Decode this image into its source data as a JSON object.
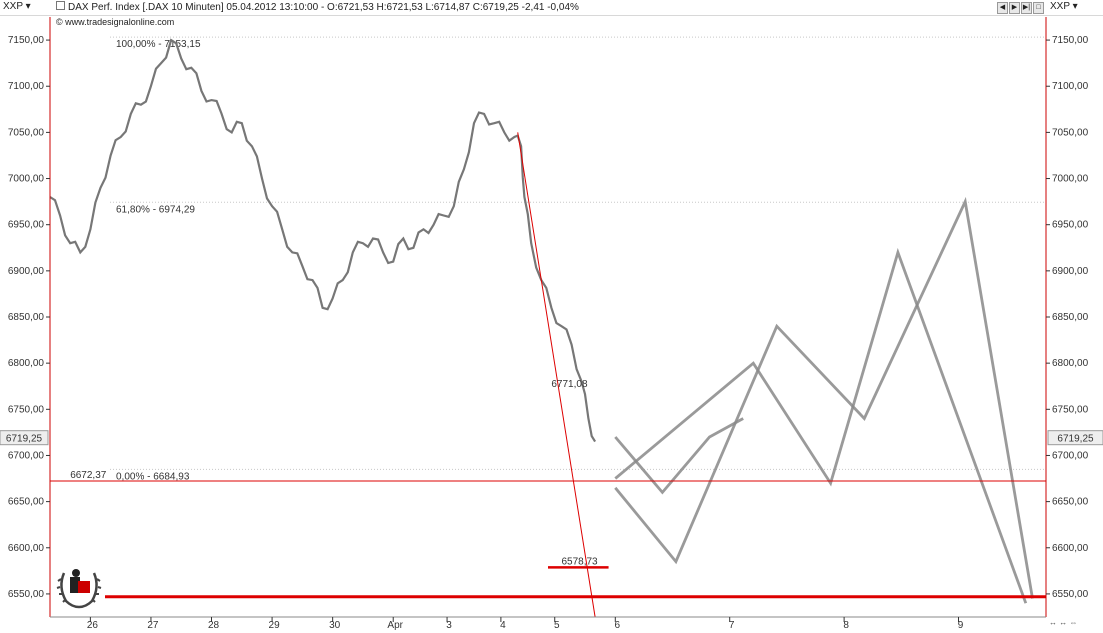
{
  "header": {
    "symbol_left": "XXP",
    "symbol_right": "XXP",
    "info_text": "DAX Perf. Index [.DAX  10 Minuten]  05.04.2012 13:10:00 - O:6721,53 H:6721,53 L:6714,87 C:6719,25 -2,41 -0,04%",
    "website": "www.tradesignalonline.com"
  },
  "colors": {
    "price": "#777777",
    "projection": "#888888",
    "red": "#dd0000",
    "grid": "#c8c8c8"
  },
  "chart_data": {
    "type": "line",
    "title": "DAX Perf. Index [.DAX  10 Minuten]",
    "ylim": [
      6525,
      7175
    ],
    "y_ticks": [
      6550,
      6600,
      6650,
      6700,
      6750,
      6800,
      6850,
      6900,
      6950,
      7000,
      7050,
      7100,
      7150
    ],
    "y_tick_labels": [
      "6550,00",
      "6600,00",
      "6650,00",
      "6700,00",
      "6750,00",
      "6800,00",
      "6850,00",
      "6900,00",
      "6950,00",
      "7000,00",
      "7050,00",
      "7100,00",
      "7150,00"
    ],
    "x_tick_labels": [
      "26",
      "27",
      "28",
      "29",
      "30",
      "Apr",
      "3",
      "4",
      "5",
      "6",
      "7",
      "8",
      "9"
    ],
    "x_ticks": [
      0.6,
      1.5,
      2.4,
      3.3,
      4.2,
      5.1,
      5.9,
      6.7,
      7.5,
      8.4,
      10.1,
      11.8,
      13.5
    ],
    "xlim": [
      0,
      14.8
    ],
    "current_price_label": "6719,25",
    "current_price": 6719.25,
    "fib_levels": [
      {
        "label": "100,00% - 7153,15",
        "value": 7153.15
      },
      {
        "label": "61,80% - 6974,29",
        "value": 6974.29
      },
      {
        "label": "0,00% - 6684,93",
        "value": 6684.93
      }
    ],
    "annotations": [
      {
        "label": "6771,08",
        "x": 7.45,
        "y": 6771.08
      },
      {
        "label": "6672,37",
        "x": 0.3,
        "y": 6672.37
      },
      {
        "label": "6578,73",
        "x": 7.6,
        "y": 6578.73
      }
    ],
    "horizontal_lines": [
      {
        "value": 6672.37,
        "style": "thin"
      },
      {
        "value": 6547,
        "style": "thick"
      }
    ],
    "trendline": {
      "x": [
        6.95,
        8.1
      ],
      "y": [
        7050,
        6525
      ]
    },
    "target_segment": {
      "x": [
        7.4,
        8.3
      ],
      "y": 6578.73
    },
    "price_series": {
      "x": [
        0.0,
        0.15,
        0.3,
        0.45,
        0.6,
        0.75,
        0.9,
        1.05,
        1.2,
        1.35,
        1.5,
        1.65,
        1.8,
        1.95,
        2.1,
        2.25,
        2.4,
        2.55,
        2.7,
        2.85,
        3.0,
        3.15,
        3.3,
        3.45,
        3.6,
        3.75,
        3.9,
        4.05,
        4.2,
        4.35,
        4.5,
        4.65,
        4.8,
        4.95,
        5.1,
        5.25,
        5.4,
        5.55,
        5.7,
        5.85,
        6.0,
        6.15,
        6.3,
        6.45,
        6.6,
        6.75,
        6.9,
        7.0,
        7.05,
        7.15,
        7.3,
        7.45,
        7.6,
        7.75,
        7.9,
        8.0,
        8.1
      ],
      "y": [
        6980,
        6960,
        6930,
        6920,
        6945,
        6990,
        7025,
        7045,
        7070,
        7080,
        7100,
        7125,
        7150,
        7130,
        7120,
        7095,
        7085,
        7070,
        7050,
        7060,
        7035,
        7000,
        6970,
        6945,
        6920,
        6905,
        6890,
        6860,
        6870,
        6890,
        6920,
        6930,
        6935,
        6920,
        6910,
        6935,
        6925,
        6945,
        6950,
        6960,
        6970,
        7010,
        7060,
        7070,
        7060,
        7050,
        7045,
        7035,
        6980,
        6930,
        6890,
        6860,
        6840,
        6820,
        6780,
        6740,
        6715
      ]
    },
    "projections": [
      {
        "name": "",
        "x": [
          8.4,
          9.3,
          10.8,
          12.1,
          13.6,
          14.6
        ],
        "y": [
          6665,
          6585,
          6840,
          6740,
          6975,
          6545
        ]
      },
      {
        "name": "",
        "x": [
          8.4,
          10.45,
          11.6,
          12.6,
          14.5
        ],
        "y": [
          6675,
          6800,
          6670,
          6920,
          6540
        ]
      },
      {
        "name": "",
        "x": [
          8.4,
          9.1,
          9.8,
          10.3
        ],
        "y": [
          6720,
          6660,
          6720,
          6740
        ]
      }
    ]
  }
}
